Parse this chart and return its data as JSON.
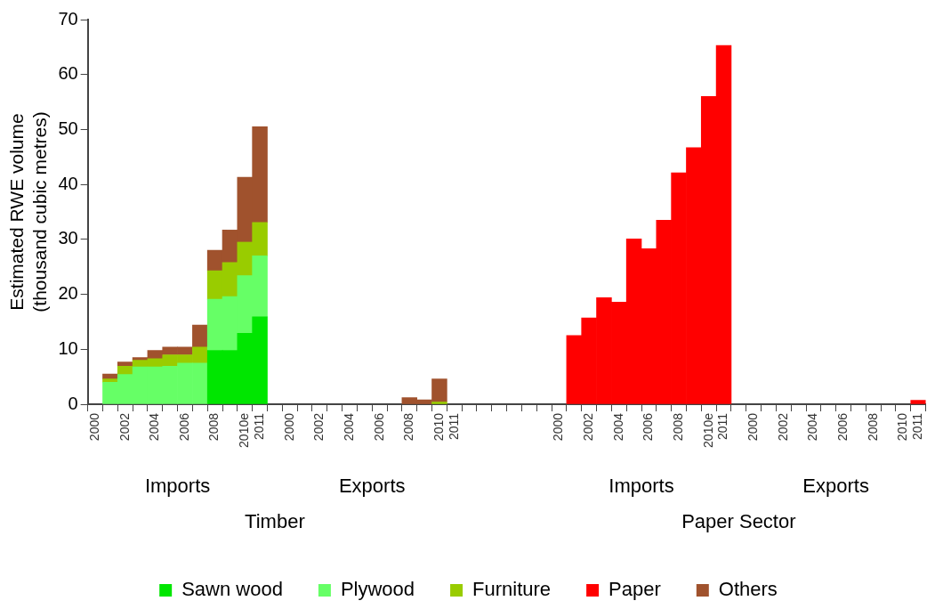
{
  "chart_data": {
    "type": "bar",
    "stacked": true,
    "ylabel": "Estimated RWE volume (thousand cubic metres)",
    "categories": [
      "2000",
      null,
      "2002",
      null,
      "2004",
      null,
      "2006",
      null,
      "2008",
      null,
      "2010e",
      "2011",
      null,
      "2000",
      null,
      "2002",
      null,
      "2004",
      null,
      "2006",
      null,
      "2008",
      null,
      "2010",
      "2011",
      null,
      null,
      null,
      null,
      null,
      null,
      "2000",
      null,
      "2002",
      null,
      "2004",
      null,
      "2006",
      null,
      "2008",
      null,
      "2010e",
      "2011",
      null,
      "2000",
      null,
      "2002",
      null,
      "2004",
      null,
      "2006",
      null,
      "2008",
      null,
      "2010",
      "2011"
    ],
    "series": [
      {
        "name": "Sawn wood",
        "color": "#00e600",
        "values": [
          null,
          null,
          null,
          null,
          null,
          null,
          null,
          null,
          9.8,
          9.8,
          12.9,
          15.9,
          null,
          null,
          null,
          null,
          null,
          null,
          null,
          null,
          null,
          null,
          null,
          null,
          null,
          null,
          null,
          null,
          null,
          null,
          null,
          null,
          null,
          null,
          null,
          null,
          null,
          null,
          null,
          null,
          null,
          null,
          null,
          null,
          null,
          null,
          null,
          null,
          null,
          null,
          null,
          null,
          null,
          null,
          null,
          null
        ]
      },
      {
        "name": "Plywood",
        "color": "#66ff66",
        "values": [
          null,
          4.0,
          5.4,
          6.8,
          6.8,
          6.9,
          7.5,
          7.5,
          9.3,
          9.8,
          10.5,
          11.1,
          null,
          null,
          null,
          null,
          null,
          null,
          null,
          null,
          null,
          null,
          null,
          null,
          null,
          null,
          null,
          null,
          null,
          null,
          null,
          null,
          null,
          null,
          null,
          null,
          null,
          null,
          null,
          null,
          null,
          null,
          null,
          null,
          null,
          null,
          null,
          null,
          null,
          null,
          null,
          null,
          null,
          null,
          null,
          null
        ]
      },
      {
        "name": "Furniture",
        "color": "#99cc00",
        "values": [
          null,
          0.6,
          1.5,
          1.2,
          1.5,
          2.1,
          1.5,
          2.9,
          5.2,
          6.2,
          6.1,
          6.1,
          null,
          null,
          null,
          null,
          null,
          null,
          null,
          null,
          null,
          null,
          null,
          0.4,
          null,
          null,
          null,
          null,
          null,
          null,
          null,
          null,
          null,
          null,
          null,
          null,
          null,
          null,
          null,
          null,
          null,
          null,
          null,
          null,
          null,
          null,
          null,
          null,
          null,
          null,
          null,
          null,
          null,
          null,
          null,
          null
        ]
      },
      {
        "name": "Paper",
        "color": "#ff0000",
        "values": [
          null,
          null,
          null,
          null,
          null,
          null,
          null,
          null,
          null,
          null,
          null,
          null,
          null,
          null,
          null,
          null,
          null,
          null,
          null,
          null,
          null,
          null,
          null,
          null,
          null,
          null,
          null,
          null,
          null,
          null,
          null,
          null,
          12.5,
          15.7,
          19.4,
          18.6,
          30.1,
          28.3,
          33.5,
          42.1,
          46.7,
          56.0,
          65.3,
          null,
          null,
          null,
          null,
          null,
          null,
          null,
          null,
          null,
          null,
          null,
          null,
          0.7
        ]
      },
      {
        "name": "Others",
        "color": "#a0522d",
        "values": [
          null,
          0.9,
          0.8,
          0.5,
          1.5,
          1.4,
          1.4,
          4.0,
          3.7,
          5.9,
          11.8,
          17.4,
          null,
          null,
          null,
          null,
          null,
          null,
          null,
          null,
          null,
          1.2,
          0.8,
          4.2,
          null,
          null,
          null,
          null,
          null,
          null,
          null,
          null,
          null,
          null,
          null,
          null,
          null,
          null,
          null,
          null,
          null,
          null,
          null,
          null,
          null,
          null,
          null,
          null,
          null,
          null,
          null,
          null,
          null,
          null,
          null,
          null
        ]
      }
    ],
    "ylim": [
      0,
      70
    ],
    "yticks": [
      0,
      10,
      20,
      30,
      40,
      50,
      60,
      70
    ],
    "grid": false,
    "legend": "bottom",
    "annotations": [
      "Imports",
      "Exports",
      "Imports",
      "Exports",
      "Timber",
      "Paper Sector"
    ]
  }
}
